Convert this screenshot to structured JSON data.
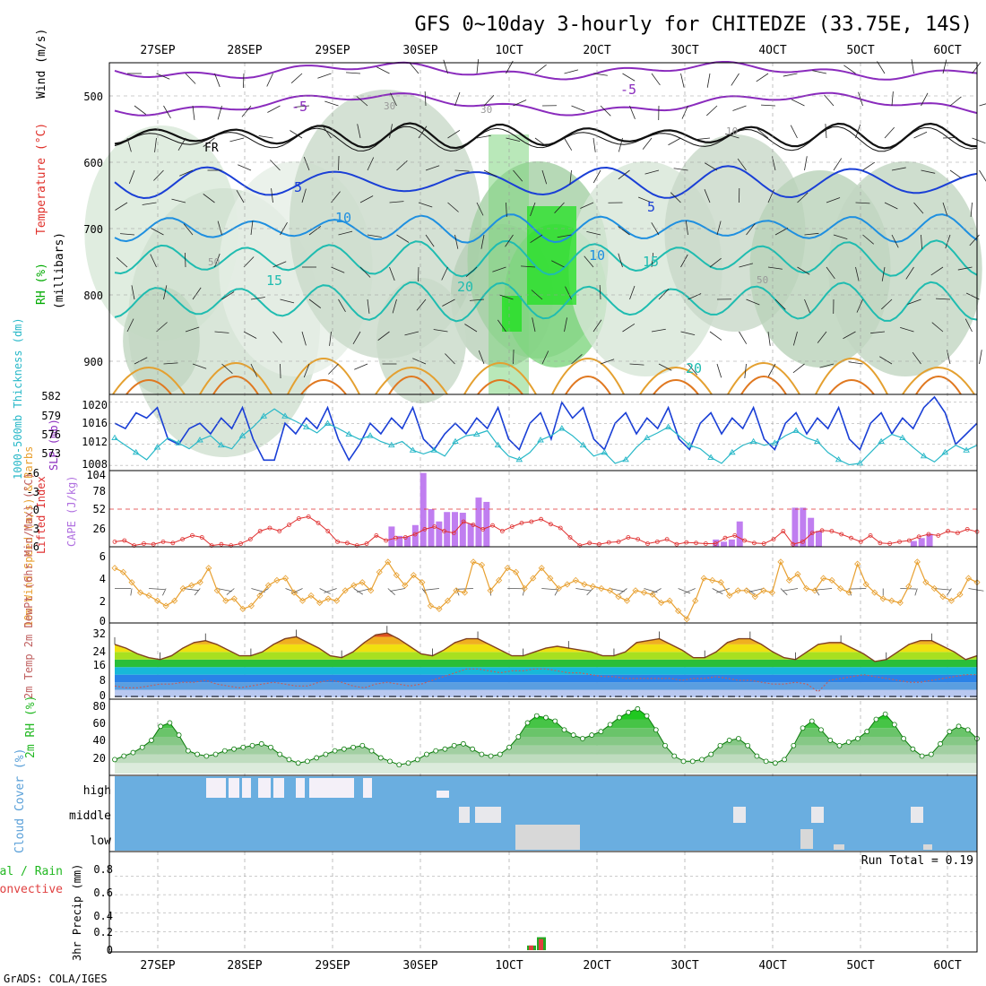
{
  "header": {
    "title": "GFS 0~10day 3-hourly for CHITEDZE (33.75E, 14S)",
    "footer": "GrADS: COLA/IGES"
  },
  "dates": [
    "27SEP",
    "28SEP",
    "29SEP",
    "30SEP",
    "1OCT",
    "2OCT",
    "3OCT",
    "4OCT",
    "5OCT",
    "6OCT"
  ],
  "colors": {
    "purple": "#8a2bbd",
    "blue": "#1a3fd6",
    "sky": "#1e8fe0",
    "teal": "#1fbcb0",
    "orange": "#e4a030",
    "darkorange": "#e07820",
    "green": "#00dd00",
    "cyan": "#28b8c8",
    "slp": "#1a3fd6",
    "cape": "#c07ef0",
    "li": "#e03030",
    "wind": "#e8a030",
    "temp": "#804020",
    "dew": "#c06060",
    "rh": "#22b822",
    "cloud": "#6aaee0",
    "precip": "#e04040"
  },
  "chart_data": [
    {
      "panel": "upper_air",
      "type": "heatmap",
      "ylabel_rh": "RH (%)",
      "ylabel_temp": "Temperature (°C)",
      "ylabel_wind": "Wind (m/s)",
      "ylabel_p": "(millibars)",
      "ylim": [
        950,
        450
      ],
      "yticks": [
        500,
        600,
        700,
        800,
        900
      ],
      "isotherm_labels": [
        "-5",
        "-5",
        "FR",
        "5",
        "5",
        "10",
        "10",
        "15",
        "15",
        "20",
        "20",
        "30",
        "30",
        "50",
        "50",
        "10"
      ]
    },
    {
      "panel": "slp_thickness",
      "type": "line",
      "ylabel_left": "1000-500mb Thickness (dm)",
      "ylabel_right": "SLP (mb)",
      "left_ticks": [
        "582",
        "579",
        "576",
        "573"
      ],
      "right_ticks": [
        "1020",
        "1016",
        "1012",
        "1008"
      ],
      "slp": [
        1016,
        1015,
        1018,
        1017,
        1019,
        1013,
        1012,
        1015,
        1016,
        1014,
        1017,
        1015,
        1019,
        1013,
        1009,
        1009,
        1016,
        1014,
        1017,
        1015,
        1019,
        1013,
        1009,
        1012,
        1016,
        1014,
        1017,
        1015,
        1019,
        1013,
        1011,
        1014,
        1016,
        1014,
        1017,
        1015,
        1019,
        1013,
        1011,
        1016,
        1018,
        1013,
        1020,
        1017,
        1019,
        1013,
        1011,
        1016,
        1018,
        1014,
        1017,
        1015,
        1019,
        1013,
        1011,
        1016,
        1018,
        1014,
        1017,
        1015,
        1019,
        1013,
        1011,
        1016,
        1018,
        1014,
        1017,
        1015,
        1019,
        1013,
        1011,
        1016,
        1018,
        1014,
        1017,
        1015,
        1019,
        1021,
        1018,
        1012,
        1014,
        1016
      ],
      "thickness": [
        576.5,
        575.5,
        574.5,
        573.5,
        575.2,
        576.5,
        575.8,
        575.0,
        576.2,
        576.8,
        575.5,
        575.0,
        576.8,
        578.0,
        579.5,
        580.5,
        579.5,
        578.8,
        578.0,
        577.2,
        578.5,
        577.8,
        577.0,
        576.3,
        576.8,
        576.0,
        575.5,
        576.0,
        574.8,
        574.3,
        574.8,
        574.0,
        576.0,
        576.8,
        577.0,
        577.5,
        575.5,
        574.0,
        573.5,
        574.5,
        576.2,
        576.8,
        577.8,
        576.8,
        575.5,
        574.0,
        574.5,
        573.0,
        573.5,
        575.2,
        576.5,
        577.2,
        578.0,
        576.8,
        575.5,
        575.0,
        573.8,
        573.0,
        574.5,
        575.5,
        576.0,
        575.5,
        575.8,
        576.8,
        577.5,
        576.5,
        576.0,
        574.5,
        573.5,
        572.8,
        573.0,
        574.5,
        576.0,
        577.0,
        576.5,
        575.2,
        574.0,
        573.2,
        574.5,
        575.5,
        574.8,
        575.5
      ]
    },
    {
      "panel": "cape_li",
      "type": "bar",
      "ylabel_left": "Lifted Index",
      "ylabel_right": "CAPE (J/kg)",
      "li_ticks": [
        "-6",
        "-3",
        "0",
        "3",
        "6"
      ],
      "cape_ticks": [
        "104",
        "78",
        "52",
        "26"
      ],
      "cape": [
        0,
        0,
        0,
        0,
        0,
        0,
        0,
        0,
        0,
        0,
        0,
        0,
        0,
        0,
        0,
        0,
        0,
        0,
        0,
        0,
        0,
        0,
        0,
        0,
        0,
        0,
        0,
        0,
        0,
        0,
        0,
        0,
        0,
        0,
        0,
        28,
        15,
        14,
        30,
        102,
        52,
        35,
        48,
        48,
        47,
        32,
        68,
        62,
        0,
        0,
        0,
        0,
        0,
        0,
        0,
        0,
        0,
        0,
        0,
        0,
        0,
        0,
        0,
        0,
        0,
        0,
        0,
        0,
        0,
        0,
        0,
        0,
        0,
        0,
        0,
        0,
        10,
        7,
        10,
        35,
        0,
        0,
        0,
        0,
        0,
        0,
        54,
        54,
        40,
        22,
        0,
        0,
        0,
        0,
        0,
        0,
        0,
        0,
        0,
        0,
        0,
        8,
        12,
        18,
        0,
        0,
        0,
        0,
        0,
        0
      ],
      "li": [
        5.2,
        5.0,
        5.8,
        5.5,
        5.6,
        5.2,
        5.4,
        4.8,
        4.2,
        4.5,
        5.8,
        5.6,
        5.8,
        5.5,
        4.8,
        3.5,
        3.0,
        3.5,
        2.5,
        1.5,
        1.2,
        2.2,
        3.5,
        5.2,
        5.4,
        5.8,
        5.5,
        4.2,
        5.0,
        4.6,
        4.5,
        4.0,
        3.2,
        2.8,
        3.5,
        3.8,
        2.0,
        2.5,
        3.2,
        2.6,
        3.5,
        2.8,
        2.2,
        2.0,
        1.6,
        2.4,
        3.0,
        4.5,
        5.8,
        5.4,
        5.6,
        5.3,
        5.2,
        4.5,
        4.8,
        5.5,
        5.2,
        4.8,
        5.6,
        5.3,
        5.4,
        5.5,
        5.5,
        4.6,
        4.2,
        5.0,
        5.4,
        5.5,
        4.8,
        3.5,
        5.6,
        5.2,
        3.8,
        3.4,
        3.5,
        4.0,
        4.6,
        5.2,
        4.2,
        5.4,
        5.5,
        5.2,
        5.0,
        4.4,
        4.0,
        4.2,
        3.5,
        3.8,
        3.2,
        3.6
      ]
    },
    {
      "panel": "wind10m",
      "type": "line",
      "ylabel": "10m Wind Speed (m/s) & Barbs",
      "yticks": [
        "6",
        "4",
        "2",
        "0"
      ],
      "ylim": [
        0,
        6.4
      ],
      "speed": [
        5.2,
        4.8,
        3.8,
        2.8,
        2.5,
        2.0,
        1.5,
        2.0,
        3.2,
        3.5,
        3.8,
        5.2,
        3.0,
        2.0,
        2.2,
        1.2,
        1.5,
        2.5,
        3.5,
        4.0,
        4.2,
        2.8,
        2.0,
        2.5,
        1.8,
        2.2,
        2.0,
        3.0,
        3.5,
        3.8,
        3.0,
        4.8,
        5.8,
        4.5,
        3.5,
        4.5,
        3.8,
        1.5,
        1.2,
        2.0,
        3.0,
        2.8,
        5.8,
        5.5,
        3.0,
        4.0,
        5.2,
        4.8,
        3.2,
        4.2,
        5.2,
        4.2,
        3.2,
        3.6,
        4.0,
        3.6,
        3.4,
        3.2,
        3.0,
        2.4,
        2.0,
        3.0,
        2.8,
        2.6,
        1.8,
        2.0,
        1.0,
        0.2,
        2.0,
        4.2,
        4.0,
        3.8,
        2.5,
        3.0,
        3.0,
        2.4,
        3.0,
        2.8,
        5.8,
        4.0,
        4.6,
        3.2,
        3.0,
        4.2,
        4.0,
        3.2,
        2.8,
        5.6,
        3.6,
        2.8,
        2.2,
        2.0,
        1.8,
        3.4,
        5.8,
        3.8,
        3.2,
        2.4,
        2.0,
        2.6,
        4.2,
        3.8
      ]
    },
    {
      "panel": "temp2m",
      "type": "area",
      "ylabel": "2m Temp 2m DewPt (6hr Min/Max) (°C)",
      "yticks": [
        "32",
        "24",
        "16",
        "8",
        "0"
      ],
      "ylim": [
        0,
        36
      ],
      "temp": [
        28,
        26,
        23,
        21,
        20,
        22,
        26,
        29,
        30,
        28,
        25,
        22,
        22,
        24,
        28,
        31,
        32,
        29,
        26,
        22,
        21,
        24,
        29,
        33,
        34,
        31,
        27,
        23,
        22,
        25,
        29,
        31,
        31,
        28,
        25,
        22,
        22,
        24,
        26,
        27,
        26,
        25,
        24,
        22,
        22,
        24,
        29,
        30,
        31,
        28,
        25,
        21,
        21,
        24,
        29,
        31,
        31,
        28,
        24,
        21,
        20,
        24,
        28,
        29,
        29,
        26,
        23,
        19,
        20,
        24,
        28,
        30,
        30,
        27,
        24,
        20,
        22
      ],
      "dewpt": [
        6,
        5,
        5,
        6,
        7,
        7,
        8,
        8,
        9,
        7,
        6,
        5,
        6,
        7,
        8,
        7,
        6,
        6,
        8,
        9,
        8,
        6,
        5,
        7,
        8,
        7,
        6,
        7,
        9,
        11,
        13,
        15,
        15,
        14,
        13,
        14,
        14,
        15,
        15,
        14,
        13,
        13,
        12,
        11,
        11,
        10,
        10,
        10,
        10,
        10,
        9,
        10,
        10,
        11,
        10,
        9,
        9,
        8,
        7,
        7,
        8,
        7,
        3,
        9,
        10,
        11,
        12,
        11,
        10,
        9,
        8,
        8,
        9,
        10,
        11,
        12,
        12
      ]
    },
    {
      "panel": "rh2m",
      "type": "area",
      "ylabel": "2m RH (%)",
      "yticks": [
        "80",
        "60",
        "40",
        "20"
      ],
      "ylim": [
        8,
        90
      ],
      "rh": [
        24,
        28,
        32,
        38,
        46,
        62,
        66,
        52,
        34,
        30,
        28,
        30,
        34,
        36,
        38,
        40,
        42,
        38,
        30,
        24,
        20,
        22,
        26,
        30,
        34,
        36,
        38,
        40,
        34,
        26,
        22,
        18,
        20,
        24,
        30,
        34,
        36,
        40,
        42,
        36,
        30,
        28,
        30,
        38,
        50,
        66,
        74,
        72,
        68,
        58,
        52,
        48,
        52,
        56,
        64,
        72,
        78,
        82,
        74,
        58,
        40,
        28,
        22,
        22,
        24,
        30,
        40,
        46,
        48,
        40,
        28,
        22,
        20,
        24,
        40,
        60,
        68,
        58,
        46,
        40,
        44,
        48,
        56,
        70,
        76,
        64,
        48,
        36,
        28,
        30,
        42,
        56,
        62,
        58,
        48
      ]
    },
    {
      "panel": "cloud",
      "type": "bar",
      "ylabel": "Cloud Cover (%)",
      "levels": [
        "high",
        "middle",
        "low"
      ]
    },
    {
      "panel": "precip",
      "type": "bar",
      "ylabel_total": "Total / Rain",
      "ylabel_conv": "Convective",
      "ylabel": "3hr Precip (mm)",
      "yticks": [
        "0.8",
        "0.6",
        "0.4",
        "0.2",
        "0"
      ],
      "ylim": [
        0,
        0.95
      ],
      "run_total_label": "Run Total = 0.19",
      "bars": [
        {
          "time": "1OCT 12Z",
          "total": 0.05,
          "convective": 0.05
        },
        {
          "time": "1OCT 15Z",
          "total": 0.14,
          "convective": 0.12
        }
      ]
    }
  ]
}
